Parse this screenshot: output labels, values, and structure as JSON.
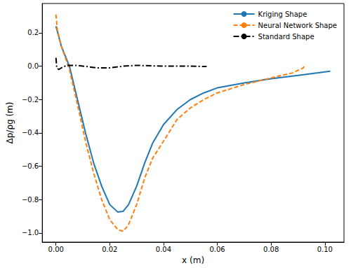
{
  "chart_data": {
    "type": "line",
    "xlabel": "x (m)",
    "ylabel": "Δp/ρg (m)",
    "xlim": [
      -0.0051,
      0.1071
    ],
    "ylim": [
      -1.055,
      0.376
    ],
    "xticks": [
      {
        "value": 0,
        "label": "0.00"
      },
      {
        "value": 0.02,
        "label": "0.02"
      },
      {
        "value": 0.04,
        "label": "0.04"
      },
      {
        "value": 0.06,
        "label": "0.06"
      },
      {
        "value": 0.08,
        "label": "0.08"
      },
      {
        "value": 0.1,
        "label": "0.10"
      }
    ],
    "yticks": [
      {
        "value": -1.0,
        "label": "−1.0"
      },
      {
        "value": -0.8,
        "label": "−0.8"
      },
      {
        "value": -0.6,
        "label": "−0.6"
      },
      {
        "value": -0.4,
        "label": "−0.4"
      },
      {
        "value": -0.2,
        "label": "−0.2"
      },
      {
        "value": 0,
        "label": "0.0"
      },
      {
        "value": 0.2,
        "label": "0.2"
      }
    ],
    "grid": false,
    "legend": "upper right",
    "series": [
      {
        "name": "Kriging Shape",
        "color": "#1f77b4",
        "line_style": "solid",
        "x": [
          0,
          0.002,
          0.005,
          0.008,
          0.011,
          0.014,
          0.017,
          0.02,
          0.023,
          0.025,
          0.027,
          0.03,
          0.033,
          0.036,
          0.04,
          0.045,
          0.05,
          0.055,
          0.06,
          0.07,
          0.08,
          0.09,
          0.102
        ],
        "values": [
          0.24,
          0.12,
          0.0,
          -0.2,
          -0.4,
          -0.58,
          -0.72,
          -0.83,
          -0.875,
          -0.87,
          -0.83,
          -0.72,
          -0.58,
          -0.46,
          -0.35,
          -0.26,
          -0.2,
          -0.16,
          -0.13,
          -0.1,
          -0.075,
          -0.055,
          -0.03
        ]
      },
      {
        "name": "Neural Network Shape",
        "color": "#ff7f0e",
        "line_style": "dashed",
        "x": [
          0,
          0.0005,
          0.002,
          0.005,
          0.008,
          0.011,
          0.014,
          0.017,
          0.02,
          0.023,
          0.025,
          0.027,
          0.03,
          0.033,
          0.036,
          0.04,
          0.045,
          0.05,
          0.055,
          0.06,
          0.07,
          0.08,
          0.088,
          0.092,
          0.0925
        ],
        "values": [
          0.31,
          0.22,
          0.12,
          -0.02,
          -0.23,
          -0.45,
          -0.64,
          -0.8,
          -0.92,
          -0.98,
          -0.99,
          -0.95,
          -0.83,
          -0.67,
          -0.55,
          -0.45,
          -0.32,
          -0.25,
          -0.2,
          -0.16,
          -0.11,
          -0.07,
          -0.04,
          -0.01,
          0.01
        ]
      },
      {
        "name": "Standard Shape",
        "color": "#000000",
        "line_style": "dashdot",
        "x": [
          0,
          0.0003,
          0.001,
          0.002,
          0.004,
          0.008,
          0.015,
          0.02,
          0.025,
          0.03,
          0.04,
          0.05,
          0.056
        ],
        "values": [
          0.05,
          -0.01,
          -0.02,
          -0.01,
          0.005,
          0.005,
          -0.01,
          -0.01,
          0.0,
          0.005,
          0.0,
          0.0,
          -0.002
        ]
      }
    ]
  }
}
